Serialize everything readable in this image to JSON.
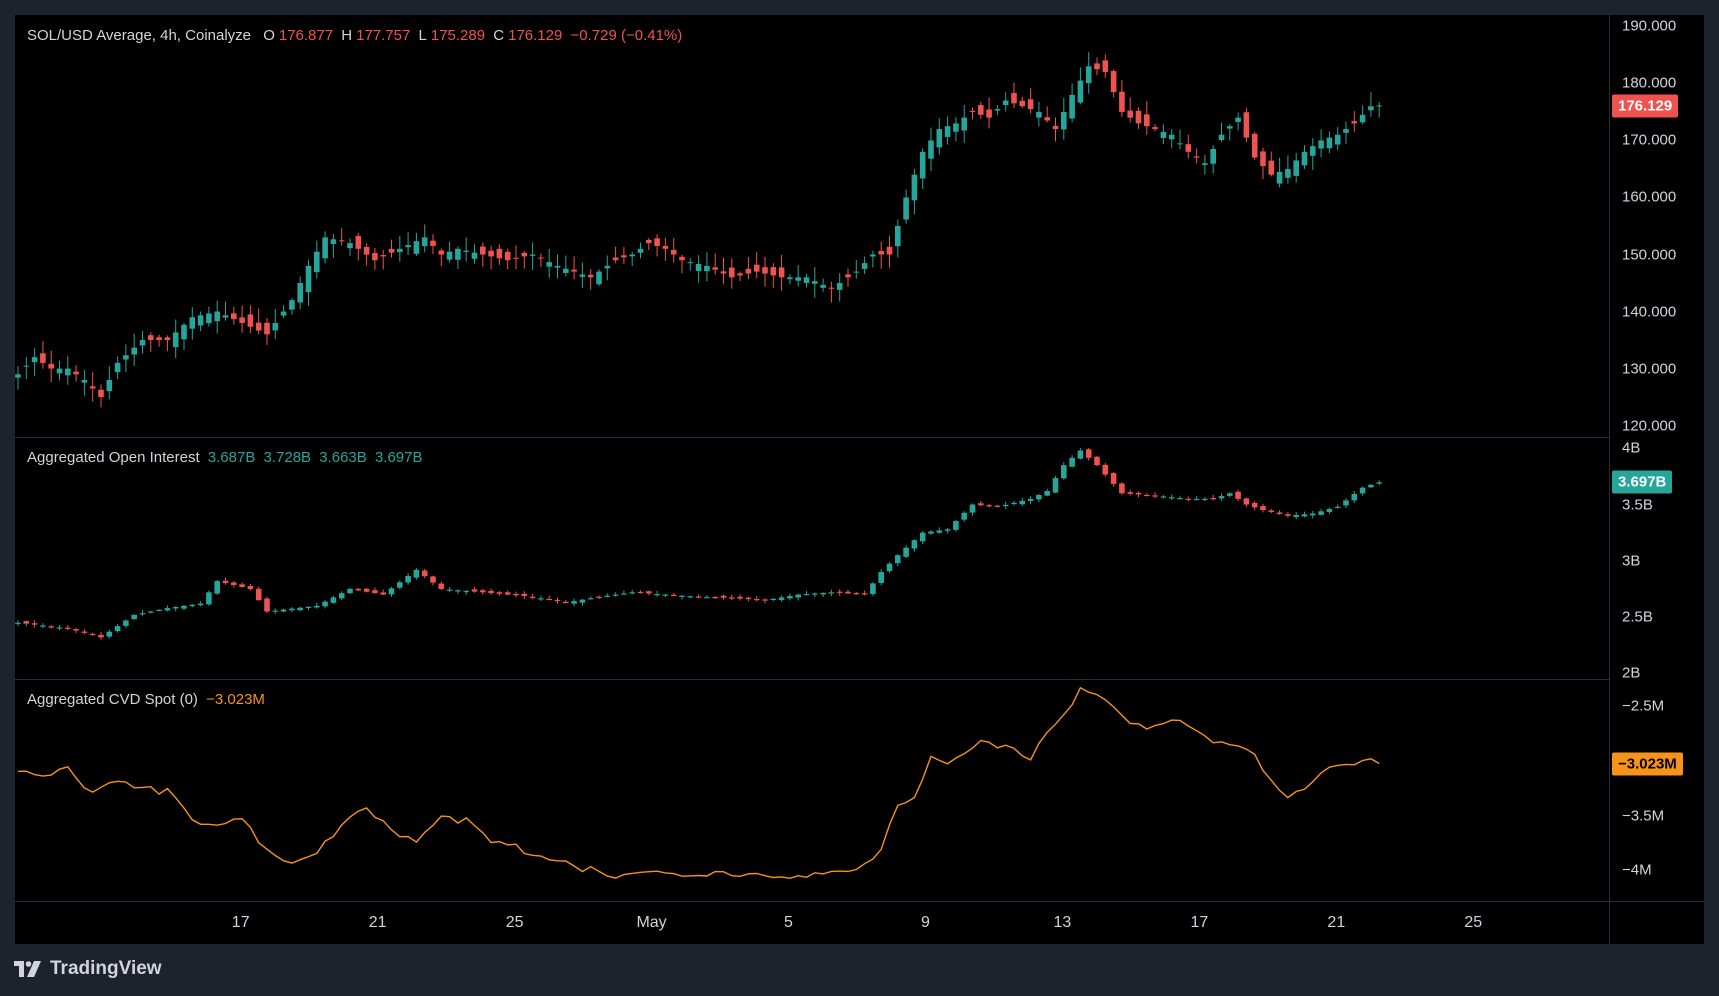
{
  "price_legend": {
    "symbol": "SOL/USD Average, 4h, Coinalyze",
    "o_label": "O",
    "o": "176.877",
    "h_label": "H",
    "h": "177.757",
    "l_label": "L",
    "l": "175.289",
    "c_label": "C",
    "c": "176.129",
    "change": "−0.729 (−0.41%)"
  },
  "oi_legend": {
    "title": "Aggregated Open Interest",
    "o": "3.687B",
    "h": "3.728B",
    "l": "3.663B",
    "c": "3.697B"
  },
  "cvd_legend": {
    "title": "Aggregated CVD Spot (0)",
    "value": "−3.023M"
  },
  "price_axis": [
    "190.000",
    "180.000",
    "170.000",
    "160.000",
    "150.000",
    "140.000",
    "130.000",
    "120.000"
  ],
  "price_tag": "176.129",
  "oi_axis": [
    "4B",
    "3.5B",
    "3B",
    "2.5B",
    "2B"
  ],
  "oi_tag": "3.697B",
  "cvd_axis": [
    "−2.5M",
    "−3.5M",
    "−4M"
  ],
  "cvd_tag": "−3.023M",
  "time_axis": [
    "17",
    "21",
    "25",
    "May",
    "5",
    "9",
    "13",
    "17",
    "21",
    "25"
  ],
  "brand": "TradingView",
  "colors": {
    "up": "#26a69a",
    "down": "#ef5350",
    "cvd": "#f7931a",
    "bg": "#000000",
    "frame": "#1e222d"
  },
  "chart_data": [
    {
      "type": "candlestick",
      "title": "SOL/USD Average, 4h, Coinalyze",
      "ylim": [
        118,
        192
      ],
      "x_ticks": [
        "17",
        "21",
        "25",
        "May",
        "5",
        "9",
        "13",
        "17",
        "21",
        "25"
      ],
      "close_anchors": [
        [
          0,
          129
        ],
        [
          2,
          132
        ],
        [
          4,
          130
        ],
        [
          6,
          130
        ],
        [
          8,
          128
        ],
        [
          10,
          125
        ],
        [
          12,
          131
        ],
        [
          15,
          135
        ],
        [
          18,
          135
        ],
        [
          21,
          139
        ],
        [
          24,
          140
        ],
        [
          27,
          138
        ],
        [
          30,
          136
        ],
        [
          33,
          142
        ],
        [
          35,
          148
        ],
        [
          37,
          153
        ],
        [
          40,
          152
        ],
        [
          43,
          149
        ],
        [
          46,
          151
        ],
        [
          49,
          153
        ],
        [
          51,
          150
        ],
        [
          53,
          151
        ],
        [
          56,
          150
        ],
        [
          59,
          149
        ],
        [
          62,
          150
        ],
        [
          65,
          148
        ],
        [
          67,
          147
        ],
        [
          69,
          146
        ],
        [
          72,
          149
        ],
        [
          74,
          150
        ],
        [
          76,
          152
        ],
        [
          78,
          151
        ],
        [
          80,
          149
        ],
        [
          83,
          148
        ],
        [
          86,
          146
        ],
        [
          89,
          147
        ],
        [
          92,
          146
        ],
        [
          95,
          146
        ],
        [
          98,
          144
        ],
        [
          101,
          147
        ],
        [
          103,
          150
        ],
        [
          105,
          150
        ],
        [
          107,
          160
        ],
        [
          109,
          168
        ],
        [
          111,
          172
        ],
        [
          113,
          173
        ],
        [
          115,
          175
        ],
        [
          117,
          174
        ],
        [
          119,
          177
        ],
        [
          121,
          176
        ],
        [
          123,
          175
        ],
        [
          125,
          172
        ],
        [
          127,
          178
        ],
        [
          129,
          183
        ],
        [
          131,
          182
        ],
        [
          133,
          175
        ],
        [
          135,
          173
        ],
        [
          137,
          172
        ],
        [
          139,
          171
        ],
        [
          141,
          168
        ],
        [
          143,
          166
        ],
        [
          145,
          171
        ],
        [
          147,
          174
        ],
        [
          149,
          167
        ],
        [
          151,
          164
        ],
        [
          153,
          165
        ],
        [
          155,
          168
        ],
        [
          157,
          170
        ],
        [
          159,
          171
        ],
        [
          161,
          173
        ],
        [
          163,
          176
        ],
        [
          164,
          176.13
        ]
      ],
      "last_close": 176.129
    },
    {
      "type": "bar",
      "title": "Aggregated Open Interest",
      "ylim": [
        1.95,
        4.1
      ],
      "close_anchors": [
        [
          0,
          2.45
        ],
        [
          6,
          2.4
        ],
        [
          10,
          2.32
        ],
        [
          14,
          2.52
        ],
        [
          18,
          2.58
        ],
        [
          22,
          2.62
        ],
        [
          24,
          2.82
        ],
        [
          28,
          2.75
        ],
        [
          30,
          2.55
        ],
        [
          36,
          2.6
        ],
        [
          40,
          2.75
        ],
        [
          44,
          2.7
        ],
        [
          48,
          2.92
        ],
        [
          51,
          2.75
        ],
        [
          56,
          2.72
        ],
        [
          62,
          2.68
        ],
        [
          66,
          2.63
        ],
        [
          70,
          2.68
        ],
        [
          74,
          2.72
        ],
        [
          78,
          2.7
        ],
        [
          82,
          2.68
        ],
        [
          86,
          2.67
        ],
        [
          90,
          2.65
        ],
        [
          94,
          2.7
        ],
        [
          98,
          2.72
        ],
        [
          102,
          2.7
        ],
        [
          104,
          2.9
        ],
        [
          106,
          3.05
        ],
        [
          109,
          3.25
        ],
        [
          112,
          3.28
        ],
        [
          115,
          3.5
        ],
        [
          118,
          3.48
        ],
        [
          122,
          3.55
        ],
        [
          124,
          3.62
        ],
        [
          126,
          3.85
        ],
        [
          128,
          3.98
        ],
        [
          130,
          3.85
        ],
        [
          133,
          3.6
        ],
        [
          137,
          3.58
        ],
        [
          141,
          3.55
        ],
        [
          144,
          3.55
        ],
        [
          146,
          3.6
        ],
        [
          148,
          3.5
        ],
        [
          150,
          3.45
        ],
        [
          153,
          3.4
        ],
        [
          156,
          3.42
        ],
        [
          159,
          3.48
        ],
        [
          162,
          3.65
        ],
        [
          164,
          3.7
        ]
      ],
      "last_close": 3.697
    },
    {
      "type": "line",
      "title": "Aggregated CVD Spot (0)",
      "ylim": [
        -4.28,
        -2.25
      ],
      "close_anchors": [
        [
          0,
          -3.1
        ],
        [
          3,
          -3.12
        ],
        [
          6,
          -3.05
        ],
        [
          9,
          -3.3
        ],
        [
          12,
          -3.2
        ],
        [
          15,
          -3.28
        ],
        [
          18,
          -3.25
        ],
        [
          21,
          -3.5
        ],
        [
          24,
          -3.6
        ],
        [
          27,
          -3.55
        ],
        [
          30,
          -3.85
        ],
        [
          33,
          -3.92
        ],
        [
          36,
          -3.8
        ],
        [
          39,
          -3.6
        ],
        [
          42,
          -3.45
        ],
        [
          45,
          -3.65
        ],
        [
          48,
          -3.7
        ],
        [
          51,
          -3.48
        ],
        [
          54,
          -3.55
        ],
        [
          57,
          -3.75
        ],
        [
          60,
          -3.8
        ],
        [
          63,
          -3.85
        ],
        [
          66,
          -3.9
        ],
        [
          69,
          -4.0
        ],
        [
          72,
          -4.08
        ],
        [
          75,
          -4.02
        ],
        [
          78,
          -3.98
        ],
        [
          81,
          -4.05
        ],
        [
          84,
          -4.02
        ],
        [
          87,
          -4.08
        ],
        [
          90,
          -4.06
        ],
        [
          93,
          -4.05
        ],
        [
          96,
          -4.02
        ],
        [
          99,
          -4.05
        ],
        [
          102,
          -3.98
        ],
        [
          104,
          -3.85
        ],
        [
          106,
          -3.4
        ],
        [
          108,
          -3.3
        ],
        [
          110,
          -2.95
        ],
        [
          113,
          -3.0
        ],
        [
          116,
          -2.85
        ],
        [
          119,
          -2.9
        ],
        [
          122,
          -2.95
        ],
        [
          124,
          -2.7
        ],
        [
          126,
          -2.55
        ],
        [
          128,
          -2.35
        ],
        [
          130,
          -2.4
        ],
        [
          132,
          -2.55
        ],
        [
          134,
          -2.7
        ],
        [
          137,
          -2.65
        ],
        [
          140,
          -2.6
        ],
        [
          142,
          -2.72
        ],
        [
          144,
          -2.85
        ],
        [
          147,
          -2.9
        ],
        [
          149,
          -2.95
        ],
        [
          151,
          -3.15
        ],
        [
          153,
          -3.3
        ],
        [
          155,
          -3.25
        ],
        [
          157,
          -3.1
        ],
        [
          159,
          -3.08
        ],
        [
          161,
          -3.05
        ],
        [
          163,
          -3.02
        ],
        [
          164,
          -3.02
        ]
      ],
      "last_value": -3.023
    }
  ]
}
